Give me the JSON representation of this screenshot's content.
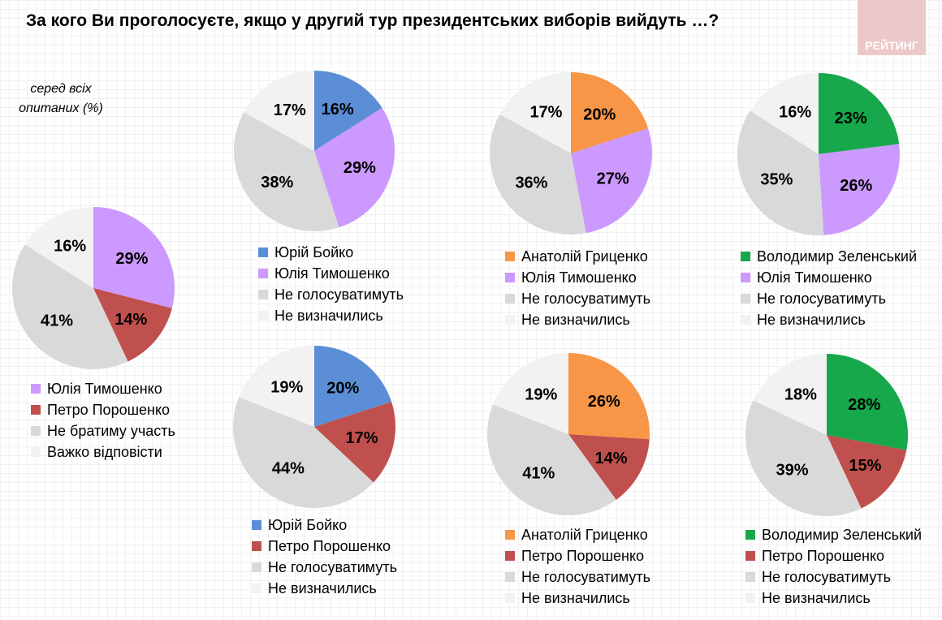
{
  "title": "За кого Ви проголосуєте, якщо у другий тур президентських виборів вийдуть …?",
  "logo_text": "РЕЙТИНГ",
  "note": "серед всіх опитаних (%)",
  "colors": {
    "Бойко": "#5B8ED6",
    "Тимошенко": "#CC99FF",
    "Порошенко": "#C0504D",
    "Гриценко": "#F79646",
    "Зеленський": "#16A84A",
    "not": "#D9D9D9",
    "undecided": "#F2F2F2"
  },
  "chart_data": [
    {
      "type": "pie",
      "categories": [
        "Юлія Тимошенко",
        "Петро Порошенко",
        "Не братиму участь",
        "Важко відповісти"
      ],
      "values": [
        29,
        14,
        41,
        16
      ],
      "colors": [
        "#CC99FF",
        "#C0504D",
        "#D9D9D9",
        "#F2F2F2"
      ]
    },
    {
      "type": "pie",
      "categories": [
        "Юрій Бойко",
        "Юлія Тимошенко",
        "Не голосуватимуть",
        "Не визначились"
      ],
      "values": [
        16,
        29,
        38,
        17
      ],
      "colors": [
        "#5B8ED6",
        "#CC99FF",
        "#D9D9D9",
        "#F2F2F2"
      ]
    },
    {
      "type": "pie",
      "categories": [
        "Анатолій Гриценко",
        "Юлія Тимошенко",
        "Не голосуватимуть",
        "Не визначились"
      ],
      "values": [
        20,
        27,
        36,
        17
      ],
      "colors": [
        "#F79646",
        "#CC99FF",
        "#D9D9D9",
        "#F2F2F2"
      ]
    },
    {
      "type": "pie",
      "categories": [
        "Володимир Зеленський",
        "Юлія Тимошенко",
        "Не голосуватимуть",
        "Не визначились"
      ],
      "values": [
        23,
        26,
        35,
        16
      ],
      "colors": [
        "#16A84A",
        "#CC99FF",
        "#D9D9D9",
        "#F2F2F2"
      ]
    },
    {
      "type": "pie",
      "categories": [
        "Юрій Бойко",
        "Петро Порошенко",
        "Не голосуватимуть",
        "Не визначились"
      ],
      "values": [
        20,
        17,
        44,
        19
      ],
      "colors": [
        "#5B8ED6",
        "#C0504D",
        "#D9D9D9",
        "#F2F2F2"
      ]
    },
    {
      "type": "pie",
      "categories": [
        "Анатолій Гриценко",
        "Петро Порошенко",
        "Не голосуватимуть",
        "Не визначились"
      ],
      "values": [
        26,
        14,
        41,
        19
      ],
      "colors": [
        "#F79646",
        "#C0504D",
        "#D9D9D9",
        "#F2F2F2"
      ]
    },
    {
      "type": "pie",
      "categories": [
        "Володимир Зеленський",
        "Петро Порошенко",
        "Не голосуватимуть",
        "Не визначились"
      ],
      "values": [
        28,
        15,
        39,
        18
      ],
      "colors": [
        "#16A84A",
        "#C0504D",
        "#D9D9D9",
        "#F2F2F2"
      ]
    }
  ]
}
